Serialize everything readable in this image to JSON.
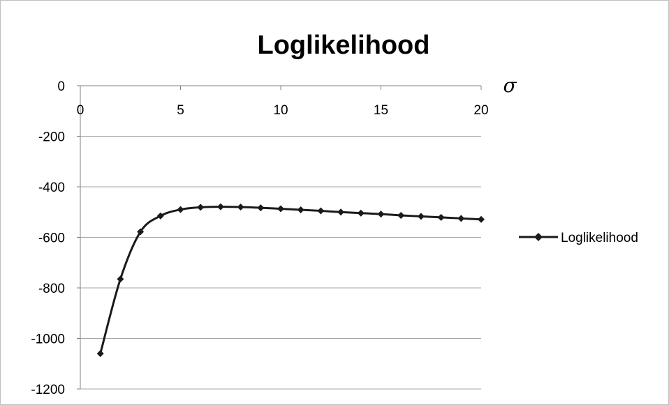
{
  "chart_data": {
    "type": "line",
    "title": "Loglikelihood",
    "xlabel": "σ",
    "ylabel": "",
    "xlim": [
      0,
      20
    ],
    "ylim": [
      -1200,
      0
    ],
    "x_ticks": [
      0,
      5,
      10,
      15,
      20
    ],
    "y_ticks": [
      0,
      -200,
      -400,
      -600,
      -800,
      -1000,
      -1200
    ],
    "x_tick_labels": [
      "0",
      "5",
      "10",
      "15",
      "20"
    ],
    "y_tick_labels": [
      "0",
      "-200",
      "-400",
      "-600",
      "-800",
      "-1000",
      "-1200"
    ],
    "grid": "horizontal",
    "legend_position": "right",
    "series": [
      {
        "name": "Loglikelihood",
        "color": "#1a1a1a",
        "marker": "diamond",
        "x": [
          1,
          2,
          3,
          4,
          5,
          6,
          7,
          8,
          9,
          10,
          11,
          12,
          13,
          14,
          15,
          16,
          17,
          18,
          19,
          20
        ],
        "values": [
          -1060,
          -765,
          -578,
          -515,
          -490,
          -481,
          -479,
          -480,
          -483,
          -487,
          -491,
          -495,
          -500,
          -504,
          -508,
          -513,
          -517,
          -521,
          -525,
          -529
        ]
      }
    ]
  }
}
